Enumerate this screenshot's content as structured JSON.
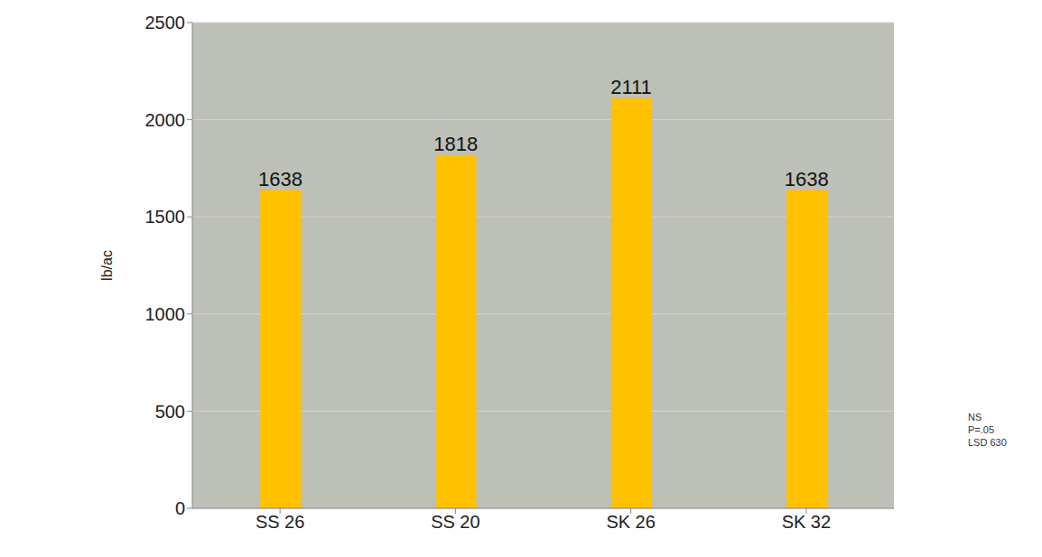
{
  "chart_data": {
    "type": "bar",
    "categories": [
      "SS 26",
      "SS 20",
      "SK 26",
      "SK 32"
    ],
    "values": [
      1638,
      1818,
      2111,
      1638
    ],
    "color": "#ffc000",
    "ylim": [
      0,
      2500
    ],
    "yticks": [
      0,
      500,
      1000,
      1500,
      2000,
      2500
    ],
    "grid": true,
    "data_labels": true,
    "y_label": "lb/ac",
    "annotations": [
      "NS",
      "P=.05",
      "LSD 630"
    ]
  }
}
